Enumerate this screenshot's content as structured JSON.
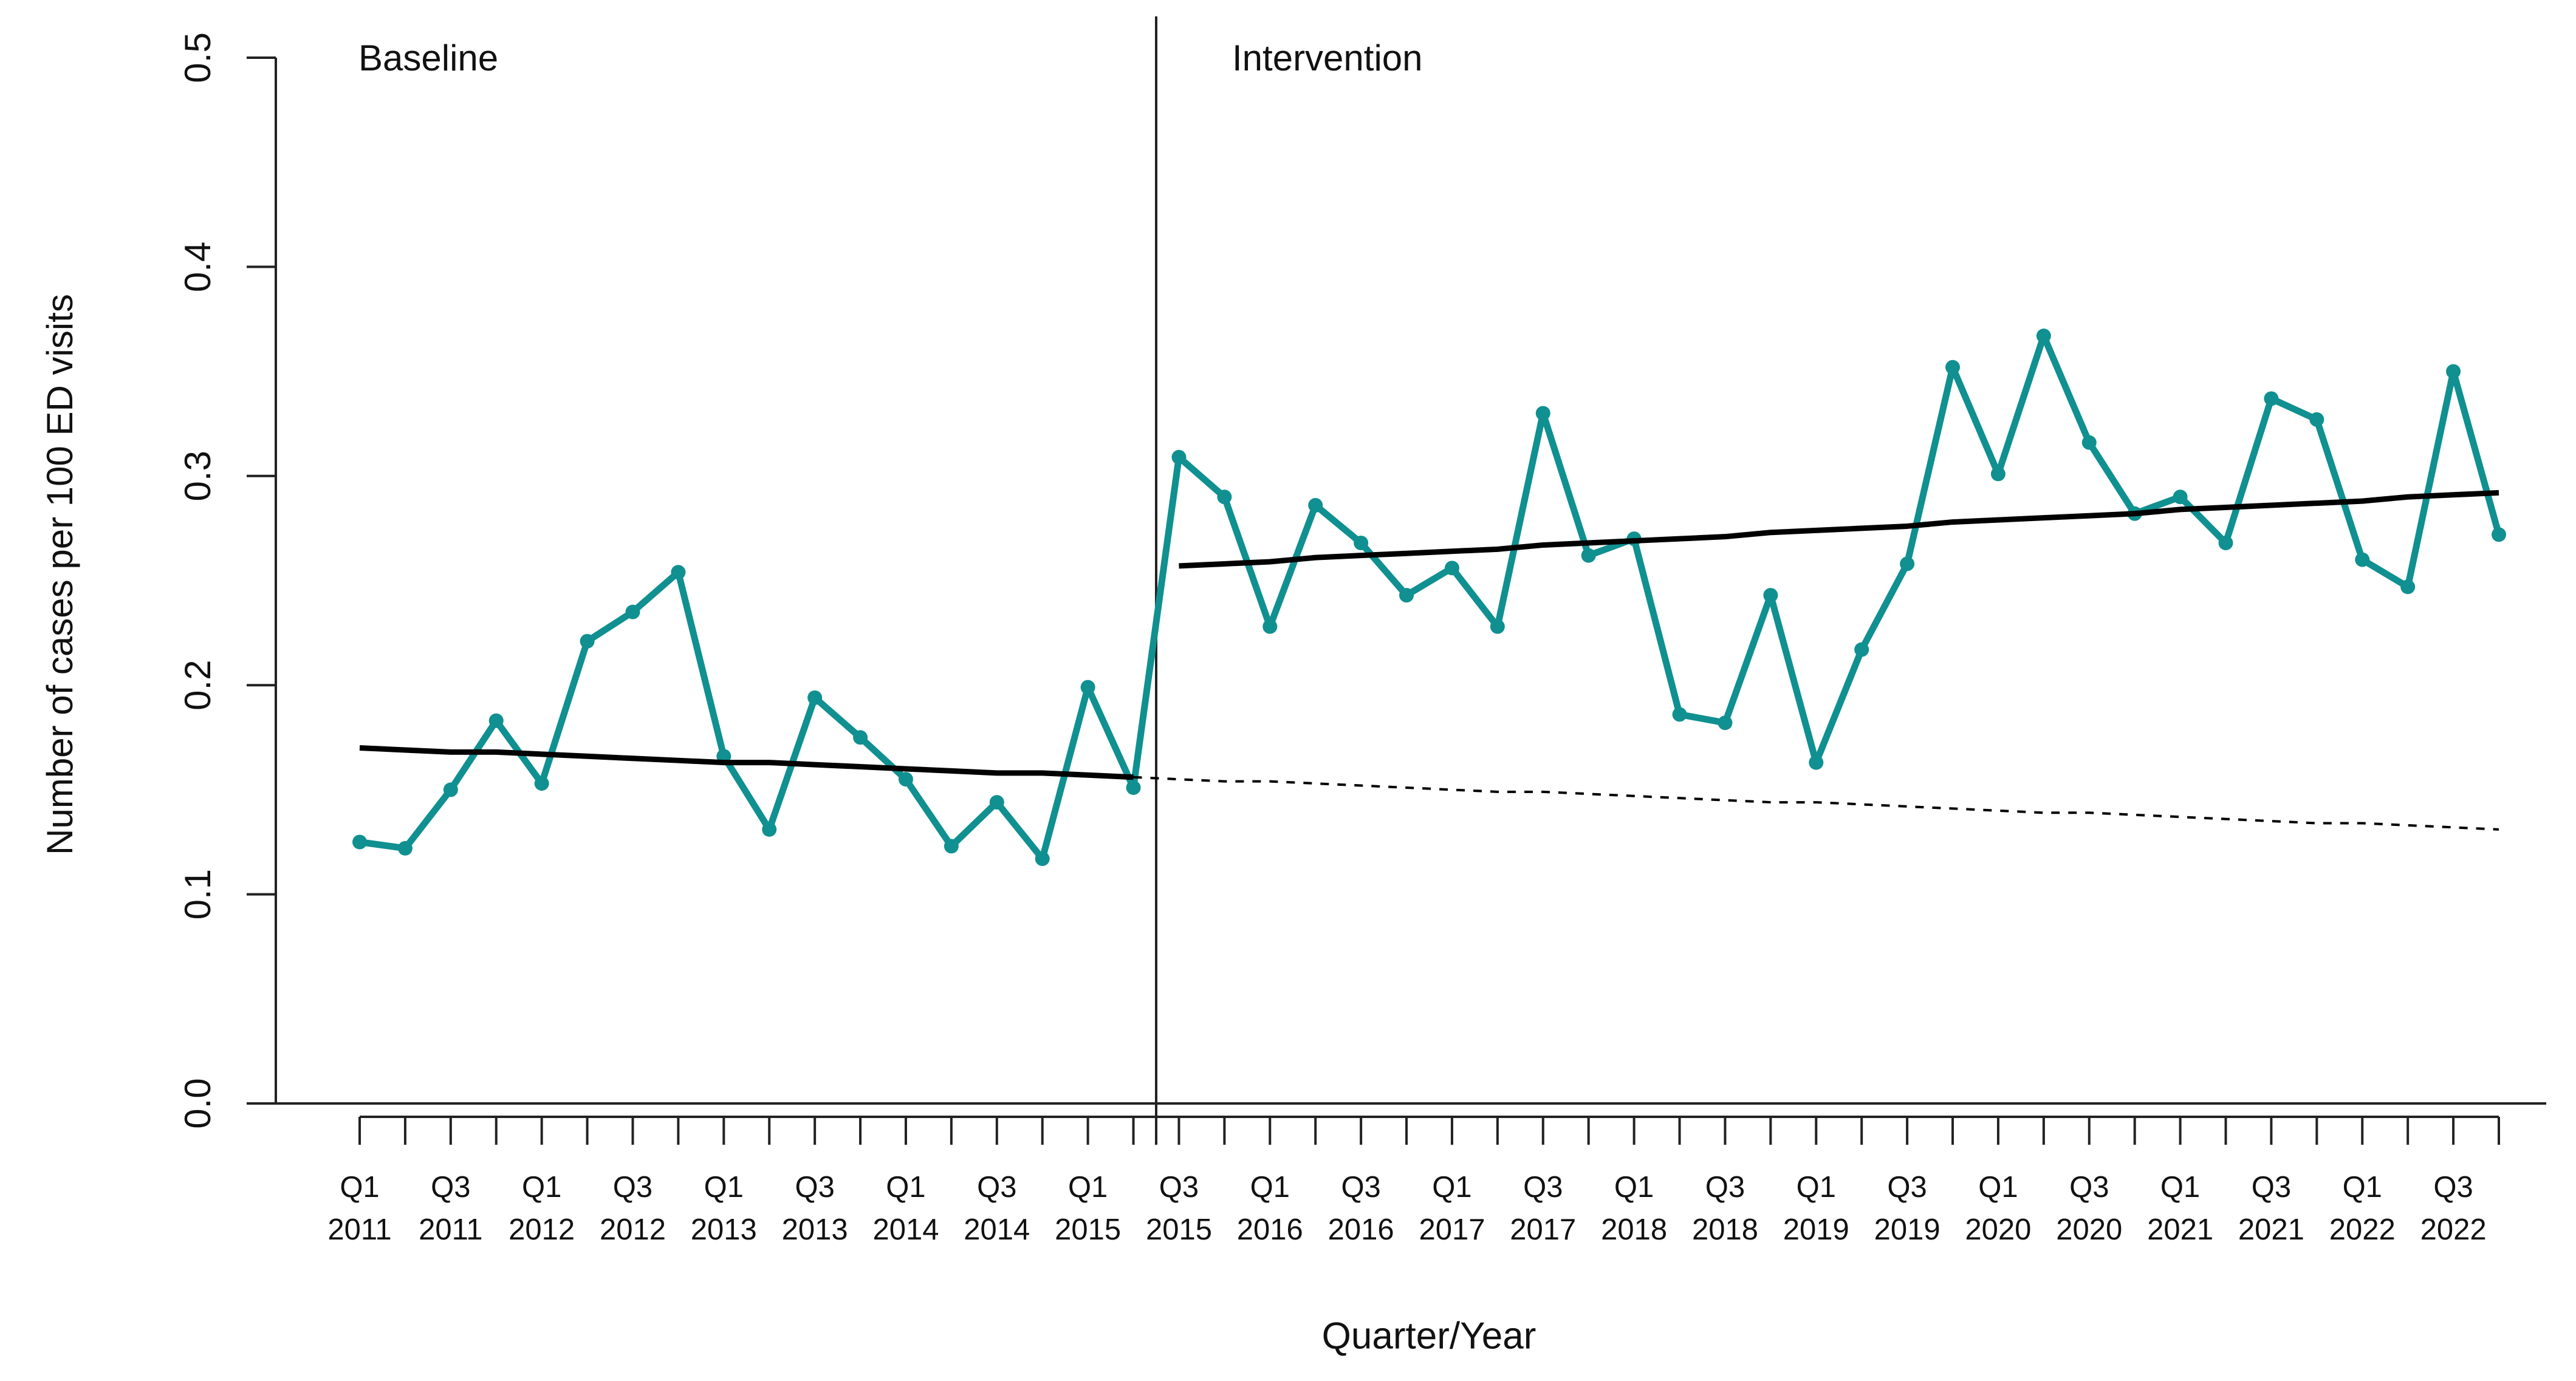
{
  "chart_data": {
    "type": "line",
    "xlabel": "Quarter/Year",
    "ylabel": "Number of cases per 100 ED visits",
    "annotations": [
      {
        "text": "Baseline"
      },
      {
        "text": "Intervention"
      }
    ],
    "categories": [
      [
        "Q1",
        "2011"
      ],
      null,
      [
        "Q3",
        "2011"
      ],
      null,
      [
        "Q1",
        "2012"
      ],
      null,
      [
        "Q3",
        "2012"
      ],
      null,
      [
        "Q1",
        "2013"
      ],
      null,
      [
        "Q3",
        "2013"
      ],
      null,
      [
        "Q1",
        "2014"
      ],
      null,
      [
        "Q3",
        "2014"
      ],
      null,
      [
        "Q1",
        "2015"
      ],
      null,
      [
        "Q3",
        "2015"
      ],
      null,
      [
        "Q1",
        "2016"
      ],
      null,
      [
        "Q3",
        "2016"
      ],
      null,
      [
        "Q1",
        "2017"
      ],
      null,
      [
        "Q3",
        "2017"
      ],
      null,
      [
        "Q1",
        "2018"
      ],
      null,
      [
        "Q3",
        "2018"
      ],
      null,
      [
        "Q1",
        "2019"
      ],
      null,
      [
        "Q3",
        "2019"
      ],
      null,
      [
        "Q1",
        "2020"
      ],
      null,
      [
        "Q3",
        "2020"
      ],
      null,
      [
        "Q1",
        "2021"
      ],
      null,
      [
        "Q3",
        "2021"
      ],
      null,
      [
        "Q1",
        "2022"
      ],
      null,
      [
        "Q3",
        "2022"
      ],
      null
    ],
    "series": [
      {
        "color": "#109090",
        "style": "solid",
        "markers": true,
        "values": [
          0.125,
          0.122,
          0.15,
          0.183,
          0.153,
          0.221,
          0.235,
          0.254,
          0.166,
          0.131,
          0.194,
          0.175,
          0.155,
          0.123,
          0.144,
          0.117,
          0.199,
          0.151,
          0.309,
          0.29,
          0.228,
          0.286,
          0.268,
          0.243,
          0.256,
          0.228,
          0.33,
          0.262,
          0.27,
          0.186,
          0.182,
          0.243,
          0.163,
          0.217,
          0.258,
          0.352,
          0.301,
          0.367,
          0.316,
          0.282,
          0.29,
          0.268,
          0.337,
          0.327,
          0.26,
          0.247,
          0.35,
          0.272
        ]
      },
      {
        "color": "#000000",
        "style": "solid",
        "markers": false,
        "values": [
          0.17,
          0.169,
          0.168,
          0.168,
          0.167,
          0.166,
          0.165,
          0.164,
          0.163,
          0.163,
          0.162,
          0.161,
          0.16,
          0.159,
          0.158,
          0.158,
          0.157,
          0.156,
          null,
          null,
          null,
          null,
          null,
          null,
          null,
          null,
          null,
          null,
          null,
          null,
          null,
          null,
          null,
          null,
          null,
          null,
          null,
          null,
          null,
          null,
          null,
          null,
          null,
          null,
          null,
          null,
          null,
          null
        ]
      },
      {
        "color": "#000000",
        "style": "solid",
        "markers": false,
        "values": [
          null,
          null,
          null,
          null,
          null,
          null,
          null,
          null,
          null,
          null,
          null,
          null,
          null,
          null,
          null,
          null,
          null,
          null,
          0.257,
          0.258,
          0.259,
          0.261,
          0.262,
          0.263,
          0.264,
          0.265,
          0.267,
          0.268,
          0.269,
          0.27,
          0.271,
          0.273,
          0.274,
          0.275,
          0.276,
          0.278,
          0.279,
          0.28,
          0.281,
          0.282,
          0.284,
          0.285,
          0.286,
          0.287,
          0.288,
          0.29,
          0.291,
          0.292
        ]
      },
      {
        "color": "#000000",
        "style": "dashed",
        "markers": false,
        "values": [
          null,
          null,
          null,
          null,
          null,
          null,
          null,
          null,
          null,
          null,
          null,
          null,
          null,
          null,
          null,
          null,
          null,
          0.156,
          0.155,
          0.154,
          0.154,
          0.153,
          0.152,
          0.151,
          0.15,
          0.149,
          0.149,
          0.148,
          0.147,
          0.146,
          0.145,
          0.144,
          0.144,
          0.143,
          0.142,
          0.141,
          0.14,
          0.139,
          0.139,
          0.138,
          0.137,
          0.136,
          0.135,
          0.134,
          0.134,
          0.133,
          0.132,
          0.131
        ]
      }
    ],
    "ylim": [
      0,
      0.5
    ],
    "yticks": [
      {
        "value": 0,
        "label": "0.0"
      },
      0.1,
      0.2,
      0.3,
      0.4,
      0.5
    ],
    "grid": false
  }
}
